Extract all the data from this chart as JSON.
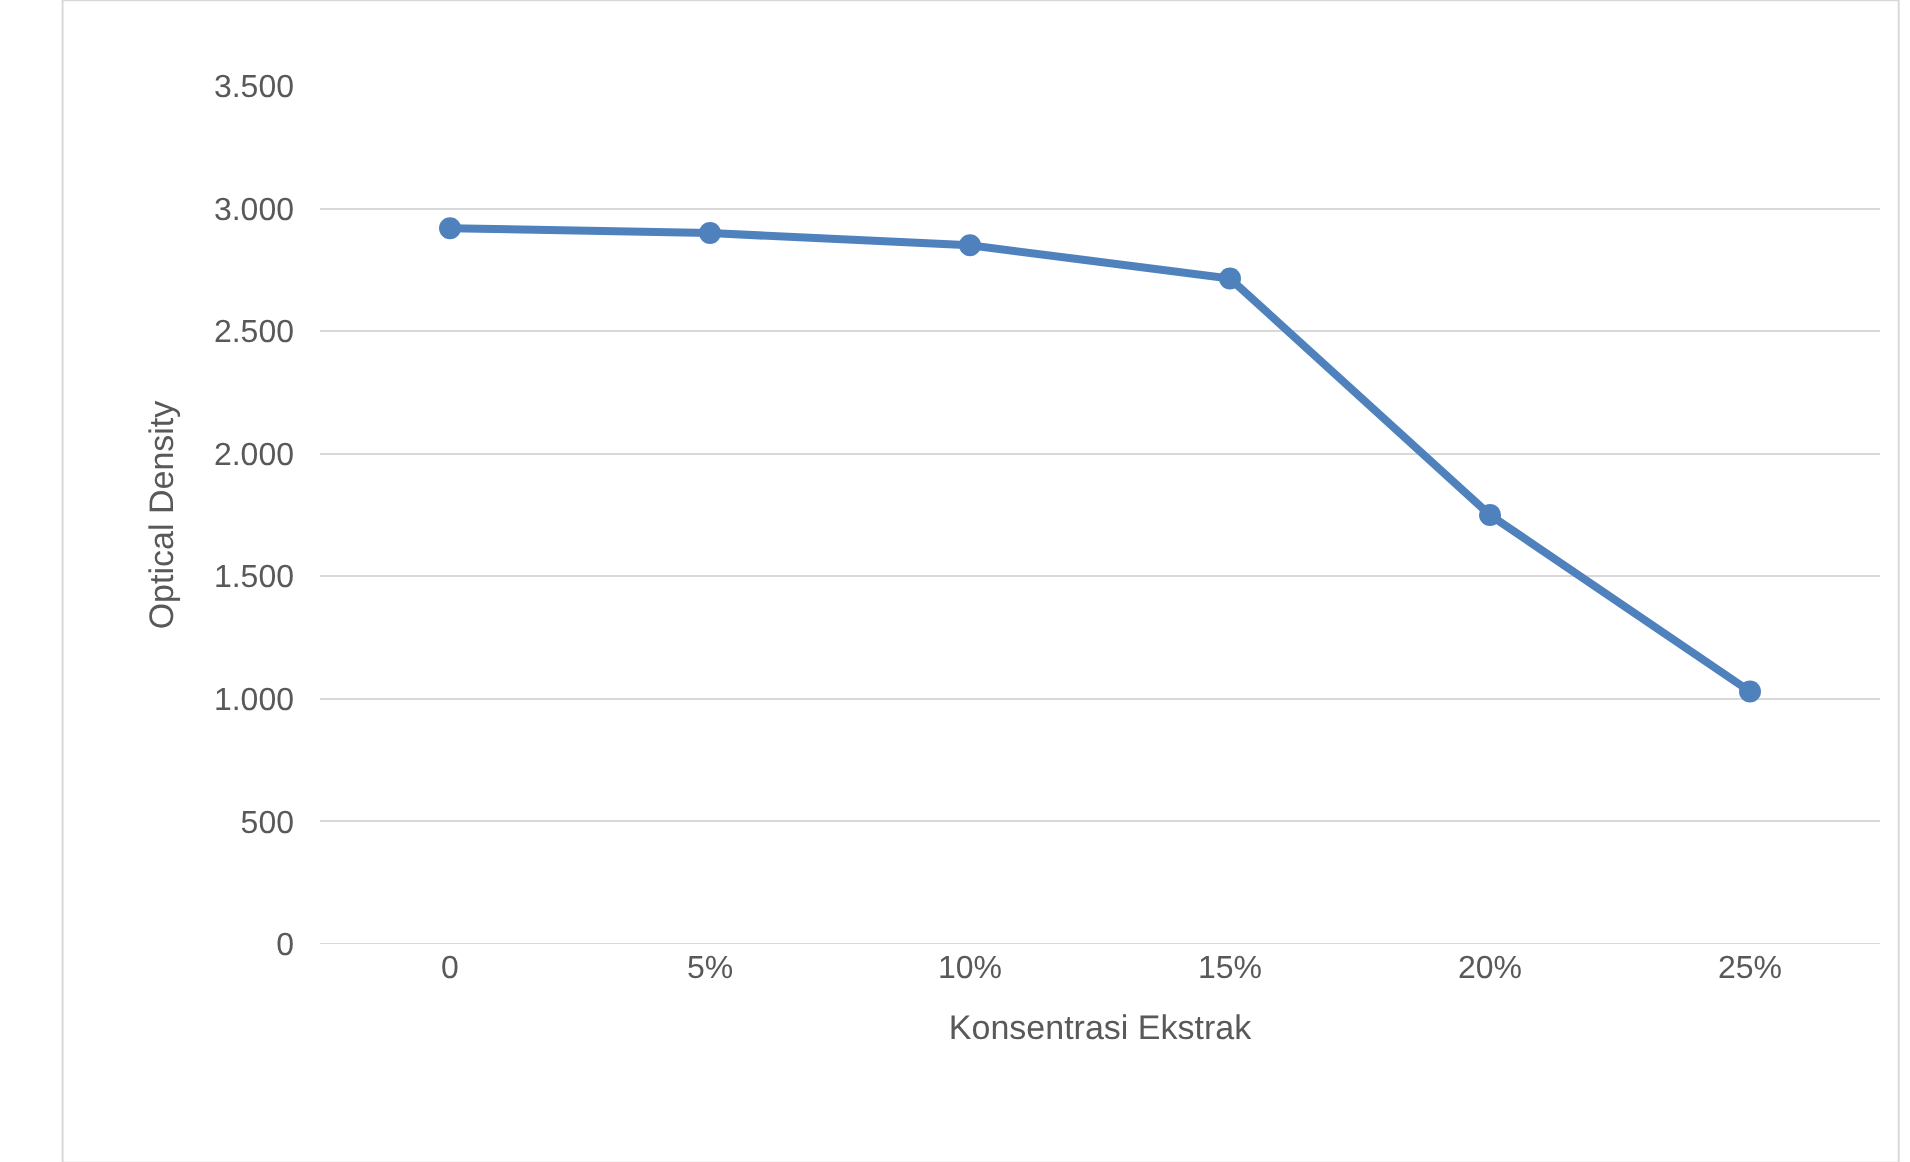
{
  "chart_data": {
    "type": "line",
    "xlabel": "Konsentrasi Ekstrak",
    "ylabel": "Optical Density",
    "categories": [
      "0",
      "5%",
      "10%",
      "15%",
      "20%",
      "25%"
    ],
    "series": [
      {
        "color": "#4f81bd",
        "values": [
          2920,
          2900,
          2850,
          2715,
          1750,
          1030
        ]
      }
    ],
    "ylim": [
      0,
      3500
    ],
    "yticks": [
      0,
      500,
      {
        "value": 1000,
        "label": "1.000"
      },
      {
        "value": 1500,
        "label": "1.500"
      },
      {
        "value": 2000,
        "label": "2.000"
      },
      {
        "value": 2500,
        "label": "2.500"
      },
      {
        "value": 3000,
        "label": "3.000"
      },
      {
        "value": 3500,
        "label": "3.500"
      }
    ],
    "grid": "y",
    "legend": false,
    "marker": "circle",
    "line_style": "solid"
  }
}
